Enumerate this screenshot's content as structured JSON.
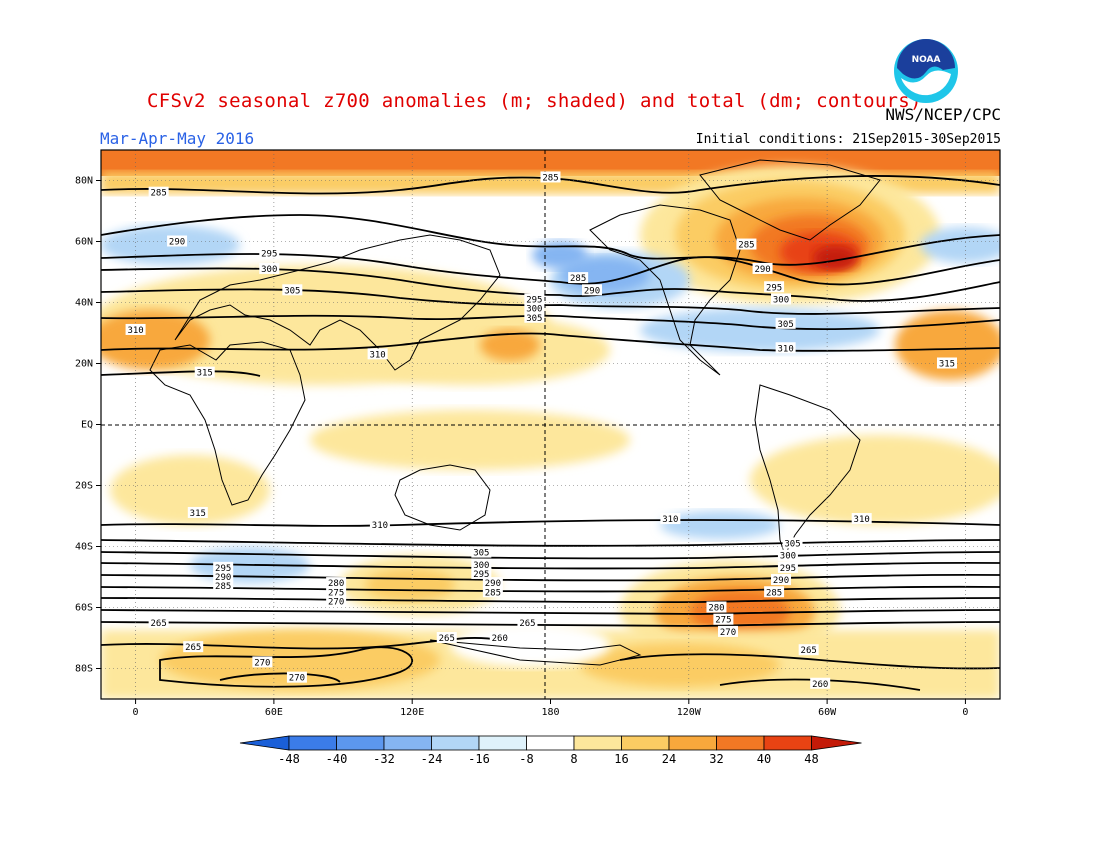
{
  "header": {
    "title": "CFSv2 seasonal z700 anomalies (m; shaded) and total (dm; contours)",
    "agency": "NWS/NCEP/CPC",
    "period": "Mar-Apr-May 2016",
    "initial_conditions": "Initial conditions: 21Sep2015-30Sep2015",
    "logo_text": "NOAA"
  },
  "map": {
    "lat_ticks": [
      "80N",
      "60N",
      "40N",
      "20N",
      "EQ",
      "20S",
      "40S",
      "60S",
      "80S"
    ],
    "lon_ticks": [
      "0",
      "60E",
      "120E",
      "180",
      "120W",
      "60W",
      "0"
    ],
    "contour_labels": [
      {
        "value": "285",
        "lon": 10,
        "lat": 76
      },
      {
        "value": "290",
        "lon": 18,
        "lat": 60
      },
      {
        "value": "295",
        "lon": 58,
        "lat": 56
      },
      {
        "value": "300",
        "lon": 58,
        "lat": 51
      },
      {
        "value": "305",
        "lon": 68,
        "lat": 44
      },
      {
        "value": "310",
        "lon": 0,
        "lat": 31
      },
      {
        "value": "315",
        "lon": 30,
        "lat": 17
      },
      {
        "value": "310",
        "lon": 105,
        "lat": 23
      },
      {
        "value": "285",
        "lon": 180,
        "lat": 81
      },
      {
        "value": "285",
        "lon": 192,
        "lat": 48
      },
      {
        "value": "290",
        "lon": 198,
        "lat": 44
      },
      {
        "value": "295",
        "lon": 173,
        "lat": 41
      },
      {
        "value": "300",
        "lon": 173,
        "lat": 38
      },
      {
        "value": "305",
        "lon": 173,
        "lat": 35
      },
      {
        "value": "285",
        "lon": 265,
        "lat": 59
      },
      {
        "value": "290",
        "lon": 272,
        "lat": 51
      },
      {
        "value": "295",
        "lon": 277,
        "lat": 45
      },
      {
        "value": "300",
        "lon": 280,
        "lat": 41
      },
      {
        "value": "305",
        "lon": 282,
        "lat": 33
      },
      {
        "value": "310",
        "lon": 282,
        "lat": 25
      },
      {
        "value": "315",
        "lon": 352,
        "lat": 20
      },
      {
        "value": "315",
        "lon": 27,
        "lat": -29
      },
      {
        "value": "310",
        "lon": 106,
        "lat": -33
      },
      {
        "value": "310",
        "lon": 232,
        "lat": -31
      },
      {
        "value": "310",
        "lon": 315,
        "lat": -31
      },
      {
        "value": "305",
        "lon": 150,
        "lat": -42
      },
      {
        "value": "300",
        "lon": 150,
        "lat": -46
      },
      {
        "value": "295",
        "lon": 150,
        "lat": -49
      },
      {
        "value": "290",
        "lon": 155,
        "lat": -52
      },
      {
        "value": "285",
        "lon": 155,
        "lat": -55
      },
      {
        "value": "295",
        "lon": 38,
        "lat": -47
      },
      {
        "value": "290",
        "lon": 38,
        "lat": -50
      },
      {
        "value": "285",
        "lon": 38,
        "lat": -53
      },
      {
        "value": "280",
        "lon": 87,
        "lat": -52
      },
      {
        "value": "275",
        "lon": 87,
        "lat": -55
      },
      {
        "value": "270",
        "lon": 87,
        "lat": -58
      },
      {
        "value": "265",
        "lon": 10,
        "lat": -65
      },
      {
        "value": "265",
        "lon": 135,
        "lat": -70
      },
      {
        "value": "260",
        "lon": 158,
        "lat": -70
      },
      {
        "value": "265",
        "lon": 170,
        "lat": -65
      },
      {
        "value": "265",
        "lon": 25,
        "lat": -73
      },
      {
        "value": "270",
        "lon": 55,
        "lat": -78
      },
      {
        "value": "270",
        "lon": 70,
        "lat": -83
      },
      {
        "value": "305",
        "lon": 285,
        "lat": -39
      },
      {
        "value": "300",
        "lon": 283,
        "lat": -43
      },
      {
        "value": "295",
        "lon": 283,
        "lat": -47
      },
      {
        "value": "290",
        "lon": 280,
        "lat": -51
      },
      {
        "value": "285",
        "lon": 277,
        "lat": -55
      },
      {
        "value": "280",
        "lon": 252,
        "lat": -60
      },
      {
        "value": "275",
        "lon": 255,
        "lat": -64
      },
      {
        "value": "270",
        "lon": 257,
        "lat": -68
      },
      {
        "value": "265",
        "lon": 292,
        "lat": -74
      },
      {
        "value": "260",
        "lon": 297,
        "lat": -85
      }
    ]
  },
  "colorbar": {
    "labels": [
      "-48",
      "-40",
      "-32",
      "-24",
      "-16",
      "-8",
      "8",
      "16",
      "24",
      "32",
      "40",
      "48"
    ],
    "colors": [
      "#1a5fd8",
      "#3b7ce8",
      "#5c97ee",
      "#85b5f2",
      "#b2d6f6",
      "#dff2fb",
      "#ffffff",
      "#fde79c",
      "#fbcc63",
      "#f8a83c",
      "#f27824",
      "#e84313",
      "#c41a08"
    ]
  }
}
